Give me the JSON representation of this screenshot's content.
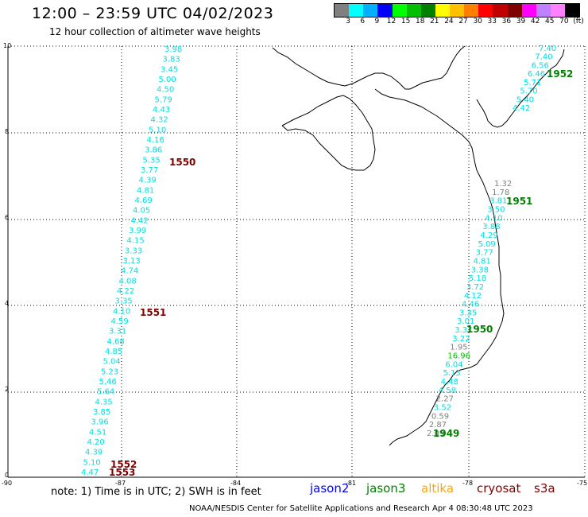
{
  "header": {
    "title": "12:00 – 23:59 UTC 04/02/2023",
    "subtitle": "12 hour collection of altimeter wave heights"
  },
  "legend": {
    "colors": [
      "#808080",
      "#00ffff",
      "#00b0ff",
      "#0000ff",
      "#00ff00",
      "#00c000",
      "#008000",
      "#ffff00",
      "#ffc000",
      "#ff8000",
      "#ff0000",
      "#c00000",
      "#800000",
      "#ff00ff",
      "#c080ff",
      "#ff80ff",
      "#000000"
    ],
    "labels": [
      "3",
      "6",
      "9",
      "12",
      "15",
      "18",
      "21",
      "24",
      "27",
      "30",
      "33",
      "36",
      "39",
      "42",
      "45",
      "70",
      "(ft)"
    ]
  },
  "axes": {
    "x_ticks": [
      "-90",
      "-87",
      "-84",
      "-81",
      "-78",
      "-75"
    ],
    "y_ticks": [
      "0",
      "2",
      "4",
      "6",
      "8",
      "10"
    ]
  },
  "tracks": [
    {
      "id": "1550",
      "color": "#800000",
      "values": [
        "3.98",
        "3.83",
        "3.45",
        "5.00",
        "4.50",
        "5.79",
        "4.43",
        "4.32",
        "5.10",
        "4.16",
        "3.86",
        "5.35",
        "3.77",
        "4.39",
        "4.81",
        "4.69",
        "4.05",
        "4.42",
        "3.99",
        "4.15",
        "3.33",
        "3.13",
        "4.74",
        "4.08",
        "4.22",
        "3.35",
        "4.10",
        "4.59",
        "3.31",
        "4.68",
        "4.85",
        "5.04",
        "5.23",
        "5.46",
        "5.64",
        "4.35",
        "3.85",
        "3.96",
        "4.51",
        "4.20",
        "4.39",
        "5.10",
        "4.47"
      ]
    },
    {
      "id": "1551",
      "color": "#800000"
    },
    {
      "id": "1552",
      "color": "#800000"
    },
    {
      "id": "1553",
      "color": "#800000"
    },
    {
      "id": "1952",
      "color": "#008000",
      "values": [
        "7.40",
        "7.40",
        "6.56",
        "6.46",
        "5.71",
        "5.70",
        "5.40",
        "4.42"
      ]
    },
    {
      "id": "1951",
      "color": "#008000",
      "values": [
        "1.32",
        "1.78",
        "3.81",
        "3.50",
        "4.10",
        "3.88",
        "4.29",
        "5.09",
        "3.77",
        "4.81",
        "3.38",
        "5.18",
        "3.72",
        "4.12",
        "4.46",
        "3.35",
        "3.01",
        "3.37",
        "3.22",
        "1.95",
        "16.96",
        "6.04",
        "5.13",
        "4.48",
        "4.58",
        "2.27",
        "3.52",
        "0.59",
        "2.87",
        "2.09"
      ]
    },
    {
      "id": "1950",
      "color": "#008000"
    },
    {
      "id": "1949",
      "color": "#008000"
    }
  ],
  "footer": {
    "note": "note: 1) Time is in UTC; 2) SWH is in feet",
    "satellites": [
      {
        "name": "jason2",
        "color": "#0000ff"
      },
      {
        "name": "jason3",
        "color": "#008000"
      },
      {
        "name": "altika",
        "color": "#ffa500"
      },
      {
        "name": "cryosat",
        "color": "#800000"
      },
      {
        "name": "s3a",
        "color": "#800000"
      }
    ],
    "credit": "NOAA/NESDIS Center for Satellite Applications and Research   Apr  4 08:30:48 UTC 2023"
  }
}
